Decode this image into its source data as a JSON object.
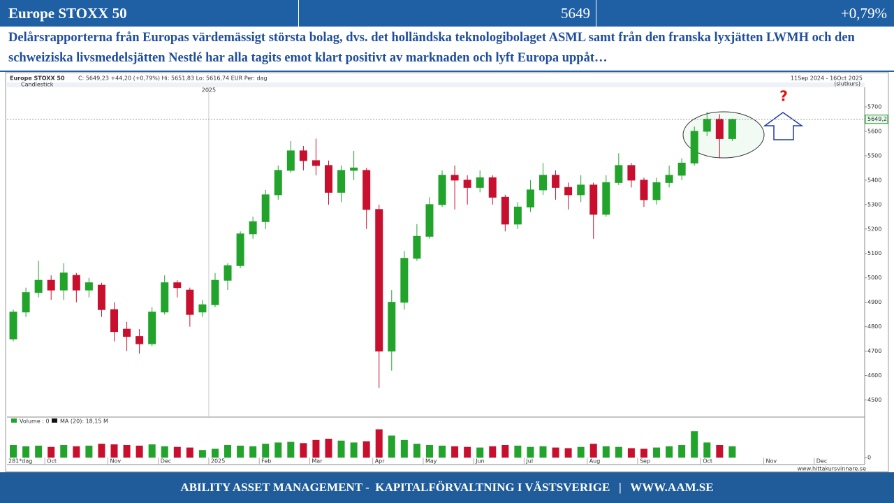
{
  "header": {
    "title": "Europe STOXX 50",
    "value": "5649",
    "change": "+0,79%"
  },
  "commentary": "Delårsrapporterna från Europas värdemässigt största bolag, dvs. det holländska teknologibolaget ASML samt från den franska lyxjätten LWMH och den schweiziska livsmedelsjätten Nestlé har alla tagits emot klart positivt av marknaden och lyft Europa uppåt…",
  "footer": "ABILITY ASSET MANAGEMENT -  KAPITALFÖRVALTNING I VÄSTSVERIGE   |   WWW.AAM.SE",
  "chart_data": {
    "type": "candlestick",
    "title": "Europe STOXX 50",
    "info": "C: 5649,23  +44,20 (+0,79%)   Hi: 5651,83   Lo: 5616,74   EUR    Per: dag",
    "subtitle": "Candlestick",
    "period": "11Sep 2024 - 16Oct 2025",
    "period_note": "(slutkurs)",
    "year_marker": "2025",
    "range_label": "281*dag",
    "source": "www.hittakursvinnare.se",
    "volume_legend": "Volume : 0",
    "ma_legend": "MA (20): 18,15 M",
    "last_price_label": "5649,2",
    "annotation": "?",
    "up_color": "#22a32b",
    "down_color": "#c8102e",
    "categories": [
      null,
      null,
      null,
      "Oct",
      null,
      null,
      null,
      null,
      "Nov",
      null,
      null,
      null,
      "Dec",
      null,
      null,
      null,
      "2025",
      null,
      null,
      null,
      "Feb",
      null,
      null,
      null,
      "Mar",
      null,
      null,
      null,
      null,
      "Apr",
      null,
      null,
      null,
      "May",
      null,
      null,
      null,
      "Jun",
      null,
      null,
      null,
      "Jul",
      null,
      null,
      null,
      null,
      "Aug",
      null,
      null,
      null,
      "Sep",
      null,
      null,
      null,
      null,
      "Oct",
      null,
      null,
      null,
      null,
      "Nov",
      null,
      null,
      null,
      "Dec",
      null,
      null,
      null
    ],
    "open": [
      4750,
      4860,
      4940,
      4990,
      4950,
      5010,
      4950,
      4970,
      4870,
      4790,
      4760,
      4730,
      4860,
      4980,
      4950,
      4860,
      4890,
      4990,
      5050,
      5180,
      5230,
      5340,
      5440,
      5520,
      5480,
      5460,
      5350,
      5440,
      5440,
      5280,
      4700,
      4900,
      5080,
      5170,
      5300,
      5420,
      5400,
      5370,
      5410,
      5330,
      5220,
      5290,
      5360,
      5420,
      5370,
      5340,
      5380,
      5260,
      5390,
      5460,
      5400,
      5320,
      5390,
      5420,
      5470,
      5600,
      5650,
      5570,
      null,
      null,
      null,
      null,
      null,
      null,
      null,
      null,
      null,
      null
    ],
    "high": [
      4870,
      4960,
      5070,
      5010,
      5060,
      5020,
      5000,
      4980,
      4900,
      4820,
      4790,
      4880,
      5010,
      4990,
      4960,
      4910,
      5020,
      5060,
      5190,
      5250,
      5360,
      5460,
      5560,
      5540,
      5570,
      5480,
      5460,
      5520,
      5450,
      5300,
      4950,
      5110,
      5220,
      5330,
      5440,
      5460,
      5420,
      5440,
      5420,
      5340,
      5310,
      5400,
      5470,
      5440,
      5390,
      5420,
      5390,
      5420,
      5510,
      5470,
      5410,
      5410,
      5460,
      5490,
      5620,
      5680,
      5670,
      5652,
      null,
      null,
      null,
      null,
      null,
      null,
      null,
      null,
      null,
      null
    ],
    "low": [
      4740,
      4840,
      4920,
      4910,
      4910,
      4900,
      4920,
      4840,
      4740,
      4700,
      4690,
      4720,
      4850,
      4920,
      4800,
      4840,
      4880,
      4950,
      5040,
      5160,
      5200,
      5320,
      5430,
      5440,
      5420,
      5300,
      5310,
      5400,
      5200,
      4550,
      4620,
      4870,
      5070,
      5160,
      5290,
      5280,
      5300,
      5350,
      5300,
      5190,
      5200,
      5270,
      5340,
      5320,
      5280,
      5310,
      5160,
      5250,
      5380,
      5370,
      5290,
      5300,
      5370,
      5400,
      5460,
      5580,
      5490,
      5560,
      null,
      null,
      null,
      null,
      null,
      null,
      null,
      null,
      null,
      null
    ],
    "close": [
      4860,
      4940,
      4990,
      4950,
      5020,
      4950,
      4980,
      4870,
      4780,
      4760,
      4730,
      4860,
      4980,
      4960,
      4850,
      4890,
      4990,
      5050,
      5180,
      5230,
      5340,
      5440,
      5520,
      5480,
      5460,
      5350,
      5440,
      5450,
      5280,
      4700,
      4900,
      5080,
      5170,
      5300,
      5420,
      5400,
      5370,
      5410,
      5330,
      5220,
      5290,
      5360,
      5420,
      5370,
      5340,
      5380,
      5260,
      5390,
      5460,
      5400,
      5320,
      5390,
      5420,
      5470,
      5600,
      5650,
      5570,
      5649.23,
      null,
      null,
      null,
      null,
      null,
      null,
      null,
      null,
      null,
      null
    ],
    "volume": [
      20,
      18,
      19,
      17,
      20,
      18,
      19,
      22,
      21,
      20,
      19,
      21,
      18,
      17,
      16,
      12,
      14,
      20,
      19,
      18,
      22,
      24,
      25,
      23,
      28,
      30,
      27,
      24,
      26,
      45,
      35,
      28,
      22,
      20,
      19,
      18,
      17,
      16,
      18,
      20,
      19,
      17,
      18,
      16,
      15,
      17,
      22,
      18,
      17,
      15,
      14,
      16,
      18,
      20,
      42,
      24,
      20,
      18,
      null,
      null,
      null,
      null,
      null,
      null,
      null,
      null,
      null,
      null
    ],
    "ylim": [
      4430,
      5780
    ],
    "yticks": [
      4500,
      4600,
      4700,
      4800,
      4900,
      5000,
      5100,
      5200,
      5300,
      5400,
      5500,
      5600,
      5700
    ],
    "vlim": [
      0,
      50
    ],
    "vticks": [
      0
    ]
  }
}
